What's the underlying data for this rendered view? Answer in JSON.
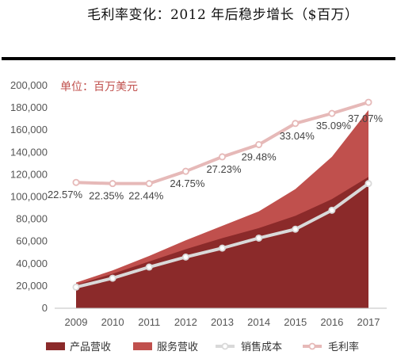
{
  "page": {
    "title": "毛利率变化：2012 年后稳步增长（$百万）"
  },
  "chart_data": {
    "type": "area",
    "title": "毛利率变化：2012 年后稳步增长（$百万）",
    "unit_annotation": "单位：百万美元",
    "categories": [
      "2009",
      "2010",
      "2011",
      "2012",
      "2013",
      "2014",
      "2015",
      "2016",
      "2017"
    ],
    "ylim": [
      0,
      200000
    ],
    "yticks": [
      "0",
      "20,000",
      "40,000",
      "60,000",
      "80,000",
      "100,000",
      "120,000",
      "140,000",
      "160,000",
      "180,000",
      "200,000"
    ],
    "grid": false,
    "legend_position": "bottom",
    "series": [
      {
        "name": "产品营收",
        "kind": "area",
        "color": "#8b2a2a",
        "values": [
          21000,
          31000,
          42000,
          53000,
          63000,
          72000,
          83000,
          98000,
          118000
        ]
      },
      {
        "name": "服务营收",
        "kind": "area",
        "color": "#c0504d",
        "values": [
          2000,
          3000,
          5000,
          8000,
          11000,
          15000,
          24000,
          38000,
          60000
        ]
      },
      {
        "name": "销售成本",
        "kind": "line",
        "color": "#d9d9d9",
        "values": [
          19000,
          27000,
          37000,
          46000,
          54000,
          63000,
          71000,
          88000,
          112000
        ]
      },
      {
        "name": "毛利率",
        "kind": "line",
        "color": "#e6b9b8",
        "values": [
          113000,
          112000,
          112000,
          123000,
          136000,
          147000,
          166000,
          175000,
          185000
        ],
        "labels": [
          "22.57%",
          "22.35%",
          "22.44%",
          "24.75%",
          "27.23%",
          "29.48%",
          "33.04%",
          "35.09%",
          "37.07%"
        ]
      }
    ]
  }
}
